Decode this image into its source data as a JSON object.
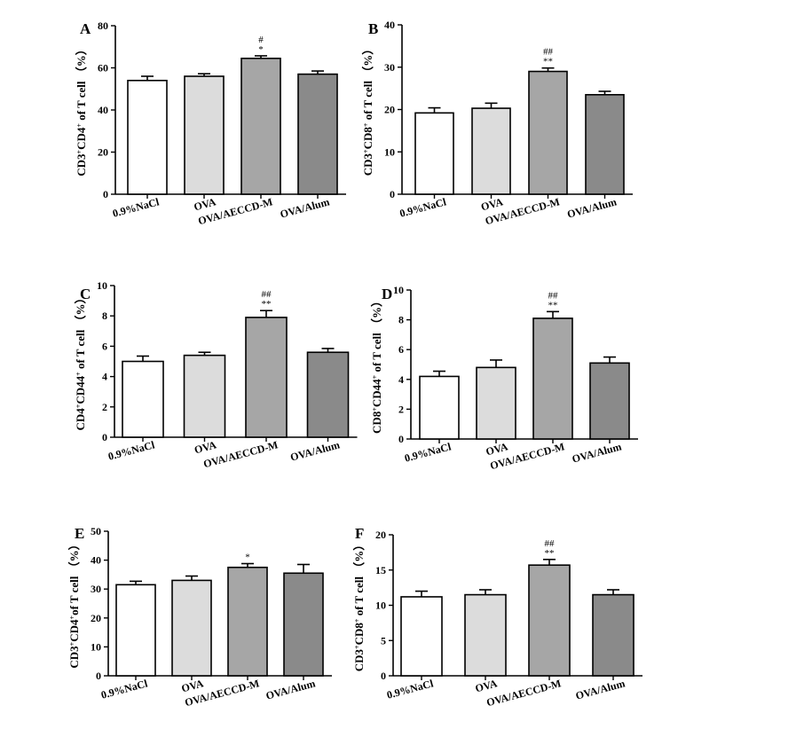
{
  "colors": {
    "bar_fills": [
      "#ffffff",
      "#dcdcdc",
      "#a6a6a6",
      "#8a8a8a"
    ],
    "axis": "#000000"
  },
  "chart_data": [
    {
      "type": "bar",
      "panel": "A",
      "ylabel_parts": [
        "CD3",
        "+",
        "CD4",
        "+",
        " of  T cell  （%）"
      ],
      "categories": [
        "0.9%NaCl",
        "OVA",
        "OVA/AECCD-M",
        "OVA/Alum"
      ],
      "values": [
        54,
        56,
        64.5,
        57
      ],
      "errors": [
        2,
        1.2,
        1.2,
        1.5
      ],
      "significance": [
        "",
        "",
        "#\n*",
        ""
      ],
      "ylim": [
        0,
        80
      ],
      "yticks": [
        0,
        20,
        40,
        60,
        80
      ]
    },
    {
      "type": "bar",
      "panel": "B",
      "ylabel_parts": [
        "CD3",
        "+",
        "CD8",
        "+",
        " of  T cell  （%）"
      ],
      "categories": [
        "0.9%NaCl",
        "OVA",
        "OVA/AECCD-M",
        "OVA/Alum"
      ],
      "values": [
        19.2,
        20.3,
        29,
        23.5
      ],
      "errors": [
        1.2,
        1.2,
        0.8,
        0.8
      ],
      "significance": [
        "",
        "",
        "##\n**",
        ""
      ],
      "ylim": [
        0,
        40
      ],
      "yticks": [
        0,
        10,
        20,
        30,
        40
      ]
    },
    {
      "type": "bar",
      "panel": "C",
      "ylabel_parts": [
        "CD4",
        "+",
        "CD44",
        "+",
        " of T cell  （%）"
      ],
      "categories": [
        "0.9%NaCl",
        "OVA",
        "OVA/AECCD-M",
        "OVA/Alum"
      ],
      "values": [
        5,
        5.4,
        7.9,
        5.6
      ],
      "errors": [
        0.35,
        0.2,
        0.45,
        0.25
      ],
      "significance": [
        "",
        "",
        "##\n**",
        ""
      ],
      "ylim": [
        0,
        10
      ],
      "yticks": [
        0,
        2,
        4,
        6,
        8,
        10
      ]
    },
    {
      "type": "bar",
      "panel": "D",
      "ylabel_parts": [
        "CD8",
        "+",
        "CD44",
        "+",
        " of  T cell  （%）"
      ],
      "categories": [
        "0.9%NaCl",
        "OVA",
        "OVA/AECCD-M",
        "OVA/Alum"
      ],
      "values": [
        4.2,
        4.8,
        8.1,
        5.1
      ],
      "errors": [
        0.35,
        0.5,
        0.45,
        0.4
      ],
      "significance": [
        "",
        "",
        "##\n**",
        ""
      ],
      "ylim": [
        0,
        10
      ],
      "yticks": [
        0,
        2,
        4,
        6,
        8,
        10
      ]
    },
    {
      "type": "bar",
      "panel": "E",
      "ylabel_parts": [
        "CD3",
        "+",
        "CD4",
        "+",
        "of  T cell  （%）"
      ],
      "categories": [
        "0.9%NaCl",
        "OVA",
        "OVA/AECCD-M",
        "OVA/Alum"
      ],
      "values": [
        31.5,
        33,
        37.5,
        35.5
      ],
      "errors": [
        1.2,
        1.5,
        1.3,
        3
      ],
      "significance": [
        "",
        "",
        "*",
        ""
      ],
      "ylim": [
        0,
        50
      ],
      "yticks": [
        0,
        10,
        20,
        30,
        40,
        50
      ]
    },
    {
      "type": "bar",
      "panel": "F",
      "ylabel_parts": [
        "CD3",
        "+",
        "CD8",
        "+",
        " of  T cell  （%）"
      ],
      "categories": [
        "0.9%NaCl",
        "OVA",
        "OVA/AECCD-M",
        "OVA/Alum"
      ],
      "values": [
        11.2,
        11.5,
        15.7,
        11.5
      ],
      "errors": [
        0.8,
        0.7,
        0.8,
        0.7
      ],
      "significance": [
        "",
        "",
        "##\n**",
        ""
      ],
      "ylim": [
        0,
        20
      ],
      "yticks": [
        0,
        5,
        10,
        15,
        20
      ]
    }
  ]
}
